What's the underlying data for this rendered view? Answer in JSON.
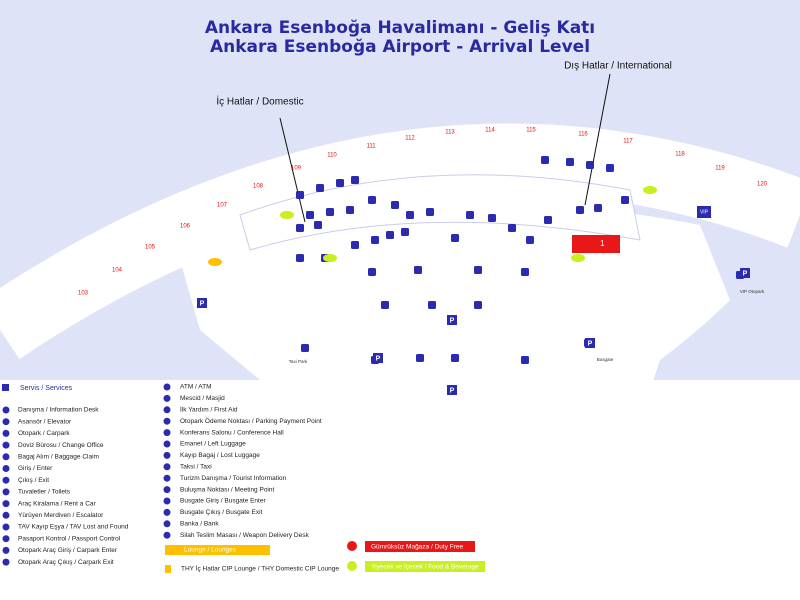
{
  "header": {
    "title": "Ankara Esenboğa Havalimanı - Geliş Katı",
    "subtitle": "Ankara Esenboğa Airport - Arrival Level"
  },
  "callouts": {
    "domestic": "İç Hatlar / Domestic",
    "international": "Dış Hatlar / International"
  },
  "gates": [
    "103",
    "104",
    "105",
    "106",
    "107",
    "108",
    "109",
    "110",
    "111",
    "112",
    "113",
    "114",
    "115",
    "116",
    "117",
    "118",
    "119",
    "120"
  ],
  "places": {
    "taxi_park": "Taxi Park",
    "busgate": "Busgate",
    "vip_parking": "VIP Otopark",
    "vip": "VIP",
    "duty_free_number": "1",
    "parking_symbol": "P"
  },
  "legend": {
    "services_header": "Servis / Services",
    "column1": [
      "Danışma / Information Desk",
      "Asansör / Elevator",
      "Otopark / Carpark",
      "Doviz Bürosu / Change Office",
      "Bagaj Alım / Baggage Claim",
      "Giriş / Enter",
      "Çıkış / Exit",
      "Tuvaletler / Toilets",
      "Araç Kiralama / Rent a Car",
      "Yürüyen Merdiven / Escalator",
      "TAV Kayıp Eşya / TAV Lost and Found",
      "Pasaport Kontrol / Passport Control",
      "Otopark Araç Giriş / Carpark Enter",
      "Otopark Araç Çıkış / Carpark Exit"
    ],
    "column2": [
      "ATM / ATM",
      "Mescid / Masjid",
      "İlk Yardım / First Aid",
      "Otopark Ödeme Noktası / Parking Payment Point",
      "Konferans Salonu / Conference Hall",
      "Emanet / Left Luggage",
      "Kayıp Bagaj / Lost Luggage",
      "Taksi / Taxi",
      "Turizm Danışma / Tourist Information",
      "Buluşma Noktası / Meeting Point",
      "Busgate Giriş / Busgate Enter",
      "Busgate Çıkış / Busgate Exit",
      "Banka / Bank",
      "Silah Teslim Masası / Weapon Delivery Desk"
    ],
    "lounge": "Lounge / Lounges",
    "thy_lounge": "THY İç Hatlar CIP Lounge / THY Domestic CIP Lounge",
    "duty_free": "Gümrüksüz Mağaza / Duty Free",
    "food": "Yiyecek ve İçecek / Food & Beverage"
  }
}
